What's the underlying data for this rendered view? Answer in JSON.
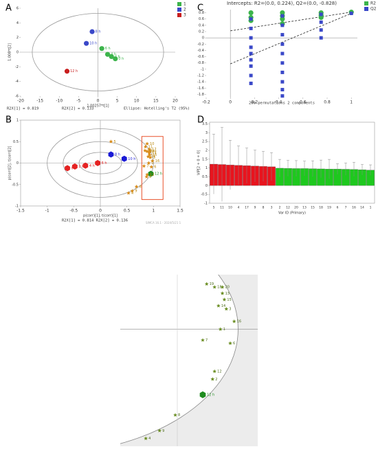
{
  "chart_data": [
    {
      "type": "scatter",
      "panel_label": "A",
      "xlim": [
        -20,
        20
      ],
      "xticks": [
        -20,
        -15,
        -10,
        -5,
        0,
        5,
        10,
        15,
        20
      ],
      "ylim": [
        -6,
        6
      ],
      "yticks": [
        -6,
        -4,
        -2,
        0,
        2,
        4,
        6
      ],
      "x_label": "1.00257*t[1]",
      "y_label": "1.008*t[2]",
      "footer": [
        "R2X[1] = 0.819",
        "R2X[2] = 0.133",
        "Ellipse: Hotelling's T2 (95%)"
      ],
      "ellipse": [
        [
          17,
          5.3
        ]
      ],
      "series": [
        {
          "name": "1",
          "color": "#3cb44b",
          "marker": "circle",
          "x": [
            1,
            2.5,
            3.5,
            4.5
          ],
          "values": [
            0.5,
            -0.3,
            -0.6,
            -0.9
          ],
          "point_labels": [
            "6 h",
            "4 h",
            "2 h",
            "0 h"
          ]
        },
        {
          "name": "2",
          "color": "#3a48c8",
          "marker": "circle",
          "x": [
            -1.5,
            -3
          ],
          "values": [
            2.8,
            1.2
          ],
          "point_labels": [
            "8 h",
            "10 h"
          ]
        },
        {
          "name": "3",
          "color": "#c81e1e",
          "marker": "circle",
          "x": [
            -8
          ],
          "values": [
            -2.6
          ],
          "point_labels": [
            "12 h"
          ]
        }
      ]
    },
    {
      "type": "scatter",
      "panel_label": "B",
      "xlim": [
        -1.5,
        1.5
      ],
      "xticks": [
        -1.5,
        -1,
        -0.5,
        0,
        0.5,
        1,
        1.5
      ],
      "ylim": [
        -1,
        1
      ],
      "yticks": [
        -1,
        -0.5,
        0,
        0.5,
        1
      ],
      "x_label": "p(corr)[1], t(corr)[1]",
      "y_label": "p(corr)[2], t(corr)[2]",
      "footer": [
        "R2X[1] = 0.814 R2X[2] = 0.136",
        "SIMCA 16.1 - 2024/5/21 1"
      ],
      "ellipse": [
        [
          1.0,
          0.8
        ],
        [
          0.7,
          0.5
        ],
        [
          0.4,
          0.25
        ]
      ],
      "series": [
        {
          "color": "#e52222",
          "marker": "hexagon",
          "x": [
            -0.62,
            -0.48,
            -0.28,
            -0.05
          ],
          "values": [
            -0.12,
            -0.08,
            -0.06,
            0
          ],
          "point_labels": [
            "0 h",
            "2 h",
            "4 h",
            "6 h"
          ]
        },
        {
          "color": "#1a1ad6",
          "marker": "hexagon",
          "x": [
            0.2,
            0.45
          ],
          "values": [
            0.2,
            0.1
          ],
          "point_labels": [
            "8 h",
            "10 h"
          ]
        },
        {
          "color": "#1e8c1e",
          "marker": "hexagon",
          "x": [
            0.95
          ],
          "values": [
            -0.25
          ],
          "point_labels": [
            "12 h"
          ]
        },
        {
          "color": "#d98c1a",
          "marker": "star",
          "x": [
            0.2,
            0.88,
            0.85,
            0.92,
            0.84,
            0.88,
            0.92,
            0.92,
            0.93,
            0.9,
            0.94,
            0.98,
            0.91,
            0.82,
            0.96,
            0.88,
            0.87,
            0.68,
            0.6,
            0.53
          ],
          "values": [
            0.5,
            0.45,
            0.38,
            0.32,
            0.29,
            0.27,
            0.27,
            0.23,
            0.19,
            0.15,
            0.13,
            0.05,
            0,
            -0.07,
            -0.09,
            -0.27,
            -0.32,
            -0.55,
            -0.65,
            -0.7
          ],
          "point_labels": [
            "5",
            "10",
            "11",
            "17",
            "19",
            "18",
            "20",
            "13",
            "15",
            "14",
            "3",
            "16",
            "1",
            "7",
            "6",
            "12",
            "2",
            "8",
            "9",
            "4"
          ]
        }
      ]
    },
    {
      "type": "scatter",
      "panel_label": "C",
      "title": "Intercepts: R2=(0.0, 0.224), Q2=(0.0, -0.828)",
      "xlim": [
        -0.2,
        1.05
      ],
      "xticks": [
        -0.2,
        0,
        0.2,
        0.4,
        0.6,
        0.8,
        1
      ],
      "ylim": [
        -1.9,
        0.9
      ],
      "yticks": [
        -1.8,
        -1.6,
        -1.4,
        -1.2,
        -1,
        -0.8,
        -0.6,
        -0.4,
        -0.2,
        0,
        0.2,
        0.4,
        0.6,
        0.8
      ],
      "footer": [
        "200 permutations 2 components"
      ],
      "fit_lines": [
        {
          "x": [
            0,
            1
          ],
          "values": [
            0.224,
            0.82
          ]
        },
        {
          "x": [
            0,
            1
          ],
          "values": [
            -0.828,
            0.78
          ]
        }
      ],
      "series": [
        {
          "name": "R2",
          "color": "#3cb44b",
          "marker": "circle",
          "x": [
            0.17,
            0.17,
            0.17,
            0.43,
            0.43,
            0.43,
            0.43,
            0.75,
            0.75,
            0.75,
            1
          ],
          "values": [
            0.8,
            0.65,
            0.55,
            0.8,
            0.7,
            0.6,
            0.45,
            0.8,
            0.72,
            0.65,
            0.82
          ]
        },
        {
          "name": "Q2",
          "color": "#3a48c8",
          "marker": "square",
          "x": [
            0.17,
            0.17,
            0.17,
            0.17,
            0.17,
            0.17,
            0.17,
            0.17,
            0.17,
            0.43,
            0.43,
            0.43,
            0.43,
            0.43,
            0.43,
            0.43,
            0.43,
            0.43,
            0.43,
            0.75,
            0.75,
            0.75,
            0.75,
            1
          ],
          "values": [
            0.6,
            0.3,
            0,
            -0.3,
            -0.5,
            -0.7,
            -0.9,
            -1.2,
            -1.45,
            0.7,
            0.4,
            0.1,
            -0.2,
            -0.5,
            -0.8,
            -1.1,
            -1.4,
            -1.65,
            -1.85,
            0.75,
            0.5,
            0.25,
            0,
            0.78
          ]
        }
      ]
    },
    {
      "type": "bar",
      "panel_label": "D",
      "categories": [
        "5",
        "11",
        "10",
        "4",
        "17",
        "9",
        "8",
        "3",
        "2",
        "12",
        "20",
        "13",
        "15",
        "18",
        "19",
        "6",
        "7",
        "16",
        "14",
        "1"
      ],
      "values": [
        1.22,
        1.2,
        1.17,
        1.15,
        1.13,
        1.11,
        1.09,
        1.07,
        0.99,
        0.98,
        0.97,
        0.97,
        0.96,
        0.95,
        0.94,
        0.94,
        0.93,
        0.92,
        0.9,
        0.88
      ],
      "errors": [
        1.7,
        2.1,
        1.4,
        1.1,
        1.0,
        0.9,
        0.85,
        0.8,
        0.5,
        0.45,
        0.45,
        0.42,
        0.45,
        0.5,
        0.55,
        0.3,
        0.35,
        0.4,
        0.3,
        0.3
      ],
      "colors": [
        "#e8141e",
        "#e8141e",
        "#e8141e",
        "#e8141e",
        "#e8141e",
        "#e8141e",
        "#e8141e",
        "#e8141e",
        "#1ec81e",
        "#1ec81e",
        "#1ec81e",
        "#1ec81e",
        "#1ec81e",
        "#1ec81e",
        "#1ec81e",
        "#1ec81e",
        "#1ec81e",
        "#1ec81e",
        "#1ec81e",
        "#1ec81e"
      ],
      "ylim": [
        -1,
        3.6
      ],
      "yticks": [
        -1,
        -0.5,
        0,
        0.5,
        1,
        1.5,
        2,
        2.5,
        3,
        3.5
      ],
      "x_label": "Var ID (Primary)",
      "y_label": "VIP[2 + 0 + 0]"
    },
    {
      "type": "scatter",
      "xlim": [
        0.4,
        1.1
      ],
      "ylim": [
        -0.75,
        0.35
      ],
      "ellipse": [
        [
          1.0,
          0.8
        ]
      ],
      "series": [
        {
          "color": "#6b8e23",
          "marker": "star",
          "x": [
            0.84,
            0.88,
            0.92,
            0.92,
            0.93,
            0.9,
            0.94,
            0.98,
            0.91,
            0.82,
            0.96,
            0.88,
            0.87,
            0.68,
            0.6,
            0.53
          ],
          "values": [
            0.29,
            0.27,
            0.27,
            0.23,
            0.19,
            0.15,
            0.13,
            0.05,
            0,
            -0.07,
            -0.09,
            -0.27,
            -0.32,
            -0.55,
            -0.65,
            -0.7
          ],
          "point_labels": [
            "19",
            "18",
            "20",
            "13",
            "15",
            "14",
            "3",
            "16",
            "1",
            "7",
            "6",
            "12",
            "2",
            "8",
            "9",
            "4"
          ]
        },
        {
          "color": "#1e8c1e",
          "marker": "hexagon",
          "x": [
            0.82
          ],
          "values": [
            -0.42
          ],
          "point_labels": [
            "12 h"
          ]
        }
      ]
    }
  ]
}
